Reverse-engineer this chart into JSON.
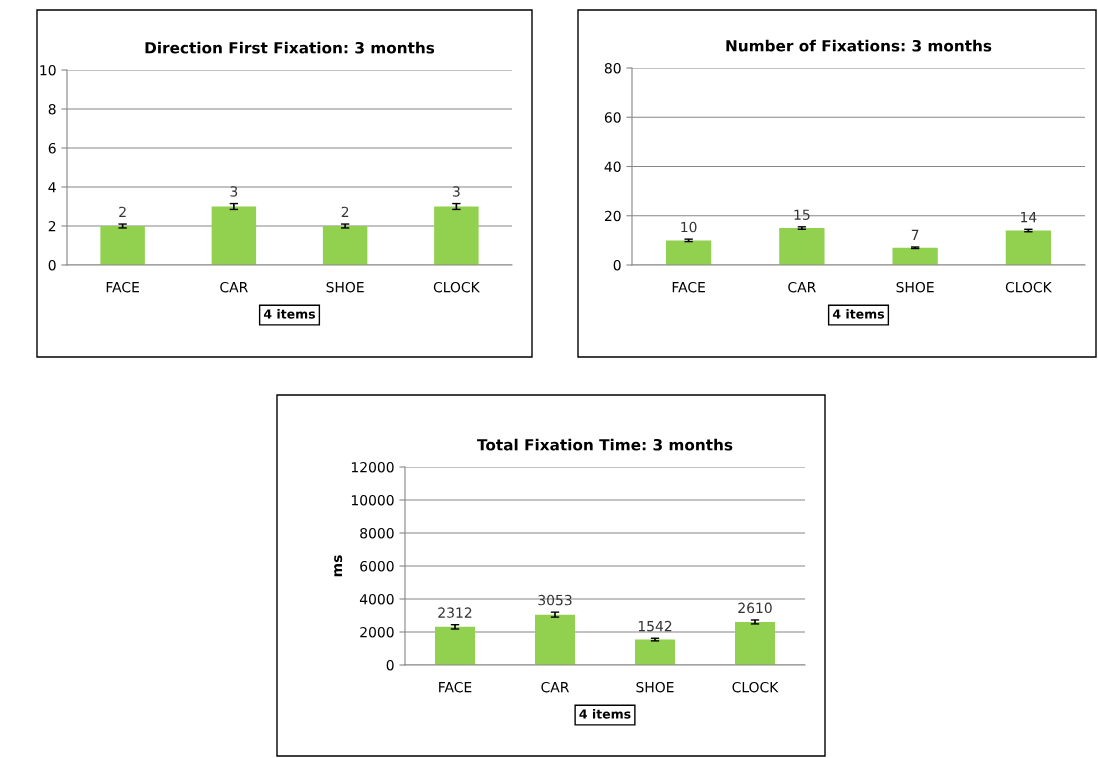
{
  "chart_data": [
    {
      "type": "bar",
      "title": "Direction First Fixation: 3 months",
      "xlabel": "4 items",
      "categories": [
        "FACE",
        "CAR",
        "SHOE",
        "CLOCK"
      ],
      "values": [
        2,
        3,
        2,
        3
      ],
      "errors": [
        0.1,
        0.15,
        0.1,
        0.15
      ],
      "color": "#92d050",
      "ylim": [
        0,
        10
      ],
      "yticks": [
        0,
        2,
        4,
        6,
        8,
        10
      ],
      "grid": "y",
      "data_labels": true
    },
    {
      "type": "bar",
      "title": "Number of Fixations: 3 months",
      "xlabel": "4 items",
      "categories": [
        "FACE",
        "CAR",
        "SHOE",
        "CLOCK"
      ],
      "values": [
        10,
        15,
        7,
        14
      ],
      "errors": [
        0.5,
        0.5,
        0.3,
        0.5
      ],
      "color": "#92d050",
      "ylim": [
        0,
        80
      ],
      "yticks": [
        0,
        20,
        40,
        60,
        80
      ],
      "grid": "y",
      "data_labels": true
    },
    {
      "type": "bar",
      "title": "Total Fixation Time: 3 months",
      "xlabel": "4 items",
      "ylabel": "ms",
      "categories": [
        "FACE",
        "CAR",
        "SHOE",
        "CLOCK"
      ],
      "values": [
        2312,
        3053,
        1542,
        2610
      ],
      "errors": [
        130,
        150,
        80,
        120
      ],
      "color": "#92d050",
      "ylim": [
        0,
        12000
      ],
      "yticks": [
        0,
        2000,
        4000,
        6000,
        8000,
        10000,
        12000
      ],
      "grid": "y",
      "data_labels": true
    }
  ]
}
